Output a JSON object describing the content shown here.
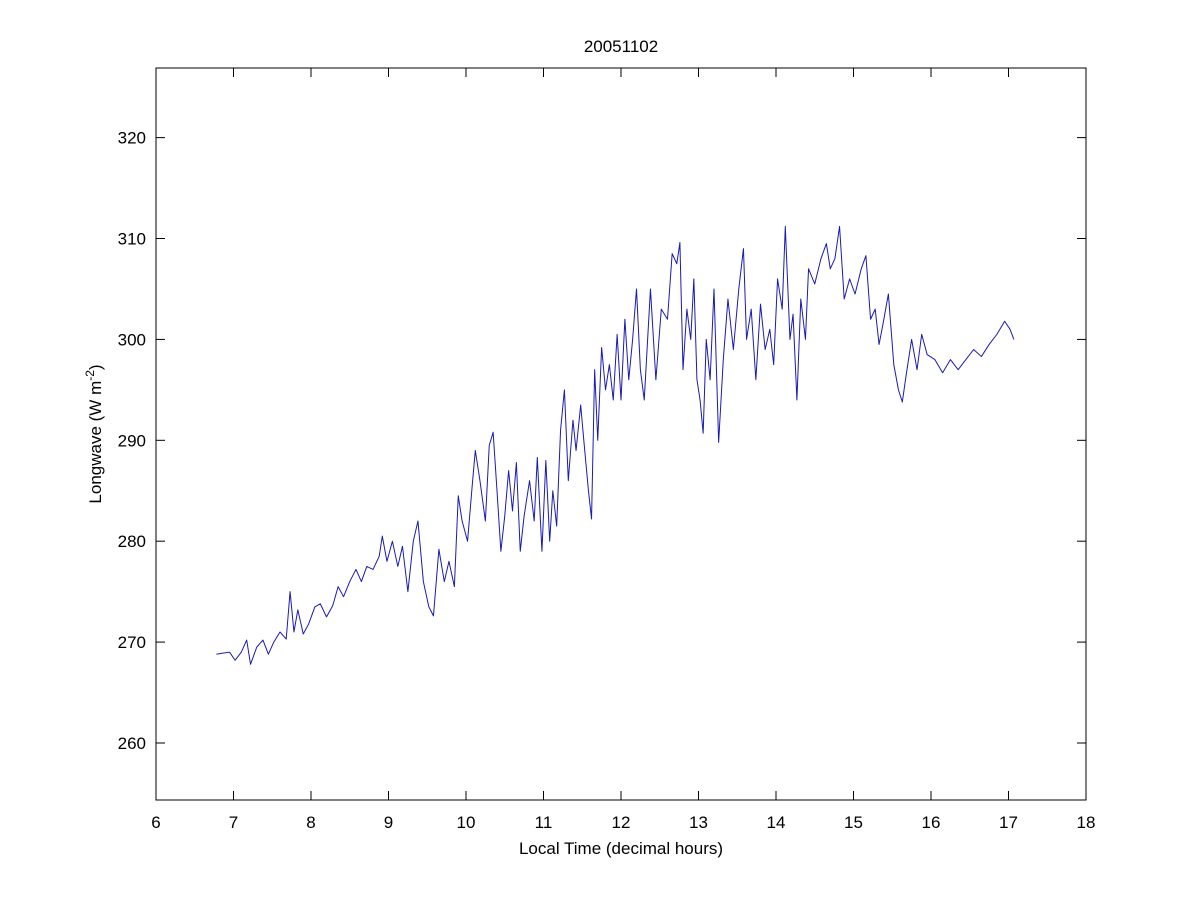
{
  "chart_data": {
    "type": "line",
    "title": "20051102",
    "xlabel": "Local Time (decimal hours)",
    "ylabel": [
      "Longwave (W m",
      "-2",
      ")"
    ],
    "x": [
      6.78,
      6.85,
      6.95,
      7.02,
      7.1,
      7.17,
      7.22,
      7.3,
      7.38,
      7.45,
      7.52,
      7.6,
      7.68,
      7.73,
      7.78,
      7.83,
      7.9,
      7.97,
      8.05,
      8.12,
      8.2,
      8.28,
      8.35,
      8.42,
      8.5,
      8.58,
      8.65,
      8.72,
      8.8,
      8.88,
      8.92,
      8.98,
      9.05,
      9.12,
      9.18,
      9.25,
      9.32,
      9.38,
      9.45,
      9.52,
      9.58,
      9.65,
      9.72,
      9.78,
      9.85,
      9.9,
      9.95,
      10.02,
      10.08,
      10.12,
      10.18,
      10.25,
      10.3,
      10.35,
      10.4,
      10.45,
      10.5,
      10.55,
      10.6,
      10.65,
      10.7,
      10.75,
      10.82,
      10.88,
      10.92,
      10.98,
      11.03,
      11.08,
      11.12,
      11.17,
      11.22,
      11.27,
      11.32,
      11.38,
      11.42,
      11.48,
      11.52,
      11.58,
      11.62,
      11.66,
      11.7,
      11.75,
      11.8,
      11.85,
      11.9,
      11.95,
      12.0,
      12.05,
      12.1,
      12.15,
      12.2,
      12.25,
      12.3,
      12.38,
      12.45,
      12.52,
      12.6,
      12.66,
      12.72,
      12.76,
      12.8,
      12.85,
      12.9,
      12.94,
      12.98,
      13.02,
      13.06,
      13.1,
      13.15,
      13.2,
      13.26,
      13.32,
      13.38,
      13.45,
      13.52,
      13.58,
      13.62,
      13.68,
      13.74,
      13.8,
      13.86,
      13.92,
      13.97,
      14.02,
      14.08,
      14.12,
      14.18,
      14.22,
      14.27,
      14.32,
      14.38,
      14.42,
      14.5,
      14.58,
      14.65,
      14.7,
      14.76,
      14.82,
      14.88,
      14.95,
      15.02,
      15.1,
      15.16,
      15.22,
      15.28,
      15.33,
      15.38,
      15.45,
      15.52,
      15.58,
      15.63,
      15.68,
      15.75,
      15.82,
      15.88,
      15.95,
      16.05,
      16.15,
      16.25,
      16.35,
      16.45,
      16.55,
      16.65,
      16.75,
      16.85,
      16.95,
      17.02,
      17.07
    ],
    "series": [
      {
        "name": "Longwave",
        "color": "#1a1ab4",
        "values": [
          268.8,
          268.9,
          269.0,
          268.2,
          269.0,
          270.2,
          267.8,
          269.5,
          270.2,
          268.8,
          270.0,
          271.0,
          270.3,
          275.0,
          271.0,
          273.2,
          270.8,
          271.8,
          273.5,
          273.8,
          272.5,
          273.6,
          275.5,
          274.5,
          276.0,
          277.2,
          276.0,
          277.5,
          277.2,
          278.5,
          280.5,
          278.0,
          280.0,
          277.5,
          279.5,
          275.0,
          280.0,
          282.0,
          276.0,
          273.5,
          272.6,
          279.2,
          276.0,
          278.0,
          275.5,
          284.5,
          282.0,
          280.0,
          285.5,
          289.0,
          286.0,
          282.0,
          289.5,
          290.8,
          285.0,
          279.0,
          282.5,
          287.0,
          283.0,
          287.8,
          279.0,
          282.5,
          286.0,
          282.0,
          288.3,
          279.0,
          288.0,
          280.0,
          285.0,
          281.5,
          291.0,
          295.0,
          286.0,
          292.0,
          289.0,
          293.5,
          290.0,
          285.0,
          282.2,
          297.0,
          290.0,
          299.2,
          295.0,
          297.5,
          294.0,
          300.5,
          294.0,
          302.0,
          296.0,
          300.0,
          305.0,
          297.0,
          294.0,
          305.0,
          296.0,
          303.0,
          302.0,
          308.5,
          307.5,
          309.6,
          297.0,
          303.0,
          300.0,
          306.0,
          296.0,
          294.0,
          290.7,
          300.0,
          296.0,
          305.0,
          289.8,
          298.0,
          304.0,
          299.0,
          305.0,
          309.0,
          300.0,
          303.0,
          296.0,
          303.5,
          299.0,
          301.0,
          297.5,
          306.0,
          303.0,
          311.2,
          300.0,
          302.5,
          294.0,
          304.0,
          300.0,
          307.0,
          305.5,
          308.0,
          309.5,
          307.0,
          308.0,
          311.2,
          304.0,
          306.0,
          304.5,
          307.0,
          308.3,
          302.0,
          303.0,
          299.5,
          301.5,
          304.5,
          297.5,
          295.0,
          293.8,
          296.5,
          300.0,
          297.0,
          300.5,
          298.5,
          298.0,
          296.7,
          298.0,
          297.0,
          298.0,
          299.0,
          298.3,
          299.5,
          300.5,
          301.8,
          301.0,
          300.0
        ]
      }
    ],
    "xlim": [
      6,
      18
    ],
    "xticks": [
      6,
      7,
      8,
      9,
      10,
      11,
      12,
      13,
      14,
      15,
      16,
      17,
      18
    ],
    "ylim": [
      254.35,
      326.9
    ],
    "yticks": [
      260,
      270,
      280,
      290,
      300,
      310,
      320
    ],
    "grid": false
  }
}
